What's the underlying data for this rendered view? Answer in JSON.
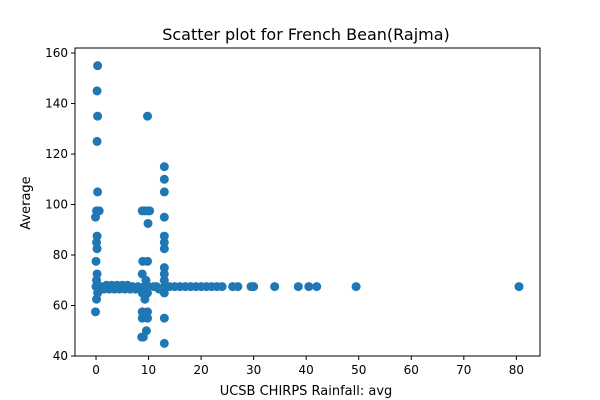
{
  "chart_data": {
    "type": "scatter",
    "title": "Scatter plot for French Bean(Rajma)",
    "xlabel": "UCSB CHIRPS Rainfall: avg",
    "ylabel": "Average",
    "xlim": [
      -4,
      84.5
    ],
    "ylim": [
      40,
      162
    ],
    "xticks": [
      0,
      10,
      20,
      30,
      40,
      50,
      60,
      70,
      80
    ],
    "yticks": [
      40,
      60,
      80,
      100,
      120,
      140,
      160
    ],
    "grid": false,
    "marker_color": "#1f77b4",
    "points": [
      [
        0.3,
        155
      ],
      [
        0.2,
        145
      ],
      [
        0.3,
        135
      ],
      [
        0.2,
        125
      ],
      [
        0.3,
        105
      ],
      [
        0.1,
        97.5
      ],
      [
        0.6,
        97.5
      ],
      [
        -0.1,
        95
      ],
      [
        0.2,
        87.5
      ],
      [
        0.1,
        85
      ],
      [
        0.2,
        82.5
      ],
      [
        0.0,
        77.5
      ],
      [
        0.2,
        72.5
      ],
      [
        0.1,
        70
      ],
      [
        0.0,
        67.5
      ],
      [
        0.3,
        65
      ],
      [
        0.1,
        62.5
      ],
      [
        -0.1,
        57.5
      ],
      [
        1,
        67.5
      ],
      [
        2,
        67.5
      ],
      [
        3,
        67.5
      ],
      [
        4,
        67.5
      ],
      [
        5,
        67.5
      ],
      [
        6,
        67.5
      ],
      [
        7,
        67.5
      ],
      [
        8,
        67.5
      ],
      [
        1.5,
        66.5
      ],
      [
        2.5,
        66.5
      ],
      [
        3.5,
        66.5
      ],
      [
        4.5,
        66.5
      ],
      [
        5.5,
        66.5
      ],
      [
        6.5,
        66.5
      ],
      [
        7.5,
        66.5
      ],
      [
        2,
        68
      ],
      [
        3,
        68
      ],
      [
        4,
        68
      ],
      [
        5,
        68
      ],
      [
        6,
        68
      ],
      [
        9.8,
        135
      ],
      [
        8.8,
        97.5
      ],
      [
        9.3,
        97.5
      ],
      [
        9.8,
        97.5
      ],
      [
        10.2,
        97.5
      ],
      [
        9.9,
        92.5
      ],
      [
        8.9,
        77.5
      ],
      [
        9.8,
        77.5
      ],
      [
        8.8,
        72.5
      ],
      [
        9.5,
        70
      ],
      [
        9.2,
        67.5
      ],
      [
        10,
        67.5
      ],
      [
        11,
        67.5
      ],
      [
        8.8,
        65
      ],
      [
        9.3,
        62.5
      ],
      [
        9.8,
        65
      ],
      [
        8.8,
        57.5
      ],
      [
        9.8,
        57.5
      ],
      [
        8.8,
        55
      ],
      [
        9.8,
        55
      ],
      [
        9.0,
        47.5
      ],
      [
        8.7,
        47.5
      ],
      [
        9.6,
        50
      ],
      [
        13,
        115
      ],
      [
        13,
        110
      ],
      [
        13,
        105
      ],
      [
        13,
        95
      ],
      [
        13,
        87.5
      ],
      [
        13,
        85
      ],
      [
        13,
        82.5
      ],
      [
        13,
        75
      ],
      [
        13,
        72.5
      ],
      [
        13,
        70
      ],
      [
        13,
        67.5
      ],
      [
        13,
        65
      ],
      [
        13,
        55
      ],
      [
        13,
        45
      ],
      [
        11.5,
        67.5
      ],
      [
        12,
        66.5
      ],
      [
        14,
        67.5
      ],
      [
        15,
        67.5
      ],
      [
        16,
        67.5
      ],
      [
        17,
        67.5
      ],
      [
        18,
        67.5
      ],
      [
        19,
        67.5
      ],
      [
        20,
        67.5
      ],
      [
        21,
        67.5
      ],
      [
        22,
        67.5
      ],
      [
        23,
        67.5
      ],
      [
        24,
        67.5
      ],
      [
        26,
        67.5
      ],
      [
        27,
        67.5
      ],
      [
        29.5,
        67.5
      ],
      [
        30,
        67.5
      ],
      [
        34,
        67.5
      ],
      [
        38.5,
        67.5
      ],
      [
        40.5,
        67.5
      ],
      [
        42,
        67.5
      ],
      [
        49.5,
        67.5
      ],
      [
        80.5,
        67.5
      ]
    ]
  }
}
